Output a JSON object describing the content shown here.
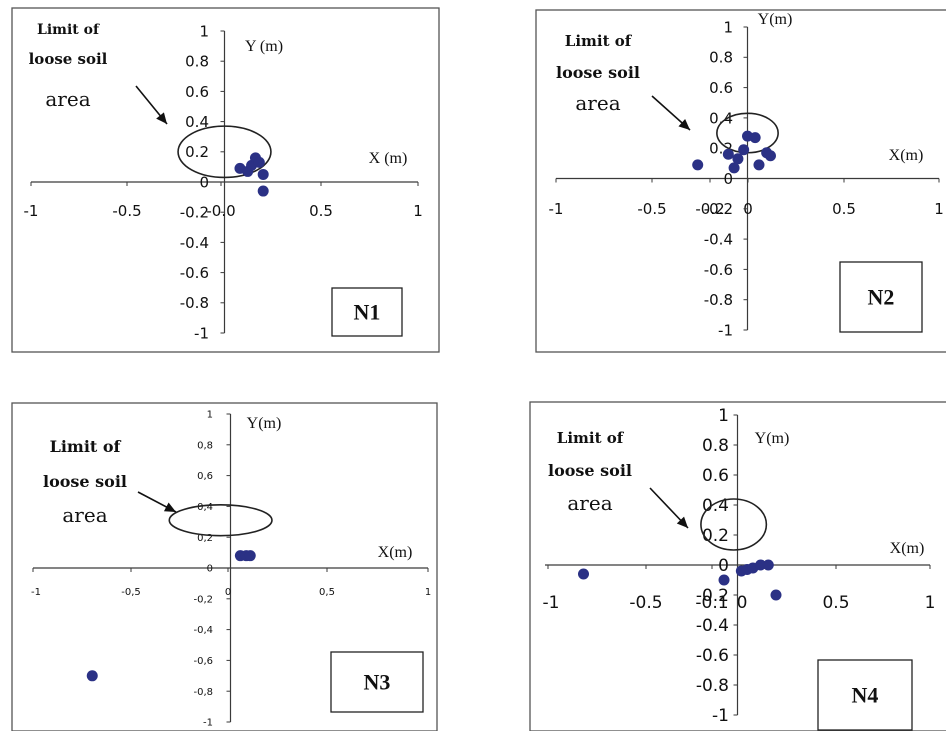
{
  "colors": {
    "points": "#2b3185",
    "axes": "#3a3a3a",
    "text": "#111111"
  },
  "chart_data": [
    {
      "type": "scatter",
      "panel_label": "N1",
      "xlabel": "X (m)",
      "ylabel": "Y (m)",
      "xlim": [
        -1,
        1
      ],
      "ylim": [
        -1,
        1
      ],
      "x_ticks": [
        "-1",
        "-0.5",
        "-0.0",
        "0.5",
        "1"
      ],
      "y_ticks": [
        "1",
        "0.8",
        "0.6",
        "0.4",
        "0.2",
        "0",
        "-0.2",
        "-0.4",
        "-0.6",
        "-0.8",
        "-1"
      ],
      "annotation": [
        "Limit of",
        "loose soil",
        "area"
      ],
      "limit_ellipse": {
        "cx": 0.0,
        "cy": 0.2,
        "rx": 0.24,
        "ry": 0.17
      },
      "grid": false,
      "legend": "none",
      "series": [
        {
          "points": [
            [
              0.08,
              0.09
            ],
            [
              0.12,
              0.07
            ],
            [
              0.14,
              0.11
            ],
            [
              0.16,
              0.16
            ],
            [
              0.18,
              0.13
            ],
            [
              0.2,
              0.05
            ],
            [
              0.2,
              -0.06
            ]
          ]
        }
      ]
    },
    {
      "type": "scatter",
      "panel_label": "N2",
      "xlabel": "X(m)",
      "ylabel": "Y(m)",
      "xlim": [
        -1,
        1
      ],
      "ylim": [
        -1,
        1
      ],
      "x_ticks": [
        "-1",
        "-0.5",
        "-0.2",
        "0",
        "0.5",
        "1"
      ],
      "y_ticks": [
        "1",
        "0.8",
        "0.6",
        "0.4",
        "0.2",
        "0",
        "-0.2",
        "-0.4",
        "-0.6",
        "-0.8",
        "-1"
      ],
      "annotation": [
        "Limit of",
        "loose soil",
        "area"
      ],
      "limit_ellipse": {
        "cx": 0.0,
        "cy": 0.3,
        "rx": 0.16,
        "ry": 0.13
      },
      "grid": false,
      "legend": "none",
      "series": [
        {
          "points": [
            [
              -0.26,
              0.09
            ],
            [
              -0.1,
              0.16
            ],
            [
              -0.07,
              0.07
            ],
            [
              -0.05,
              0.13
            ],
            [
              -0.02,
              0.19
            ],
            [
              0.0,
              0.28
            ],
            [
              0.04,
              0.27
            ],
            [
              0.06,
              0.09
            ],
            [
              0.1,
              0.17
            ],
            [
              0.12,
              0.15
            ]
          ]
        }
      ]
    },
    {
      "type": "scatter",
      "panel_label": "N3",
      "xlabel": "X(m)",
      "ylabel": "Y(m)",
      "xlim": [
        -1,
        1
      ],
      "ylim": [
        -1,
        1
      ],
      "x_ticks": [
        "-1",
        "-0,5",
        "0",
        "0,5",
        "1"
      ],
      "y_ticks": [
        "1",
        "0,8",
        "0,6",
        "0,4",
        "0,2",
        "0",
        "-0,2",
        "-0,4",
        "-0,6",
        "-0,8",
        "-1"
      ],
      "annotation": [
        "Limit of",
        "loose soil",
        "area"
      ],
      "limit_ellipse": {
        "cx": -0.05,
        "cy": 0.31,
        "rx": 0.26,
        "ry": 0.1
      },
      "grid": false,
      "legend": "none",
      "series": [
        {
          "points": [
            [
              -0.7,
              -0.7
            ],
            [
              0.05,
              0.08
            ],
            [
              0.08,
              0.08
            ],
            [
              0.1,
              0.08
            ]
          ]
        }
      ]
    },
    {
      "type": "scatter",
      "panel_label": "N4",
      "xlabel": "X(m)",
      "ylabel": "Y(m)",
      "xlim": [
        -1,
        1
      ],
      "ylim": [
        -1,
        1
      ],
      "x_ticks": [
        "-1",
        "-0.5",
        "-0.1",
        "0",
        "0.5",
        "1"
      ],
      "y_ticks": [
        "1",
        "0.8",
        "0.6",
        "0.4",
        "0.2",
        "0",
        "-0.2",
        "-0.4",
        "-0.6",
        "-0.8",
        "-1"
      ],
      "annotation": [
        "Limit of",
        "loose soil",
        "area"
      ],
      "limit_ellipse": {
        "cx": -0.02,
        "cy": 0.27,
        "rx": 0.17,
        "ry": 0.17
      },
      "grid": false,
      "legend": "none",
      "series": [
        {
          "points": [
            [
              -0.8,
              -0.06
            ],
            [
              -0.07,
              -0.1
            ],
            [
              0.02,
              -0.04
            ],
            [
              0.05,
              -0.03
            ],
            [
              0.08,
              -0.02
            ],
            [
              0.12,
              0.0
            ],
            [
              0.16,
              0.0
            ],
            [
              0.2,
              -0.2
            ]
          ]
        }
      ]
    }
  ]
}
